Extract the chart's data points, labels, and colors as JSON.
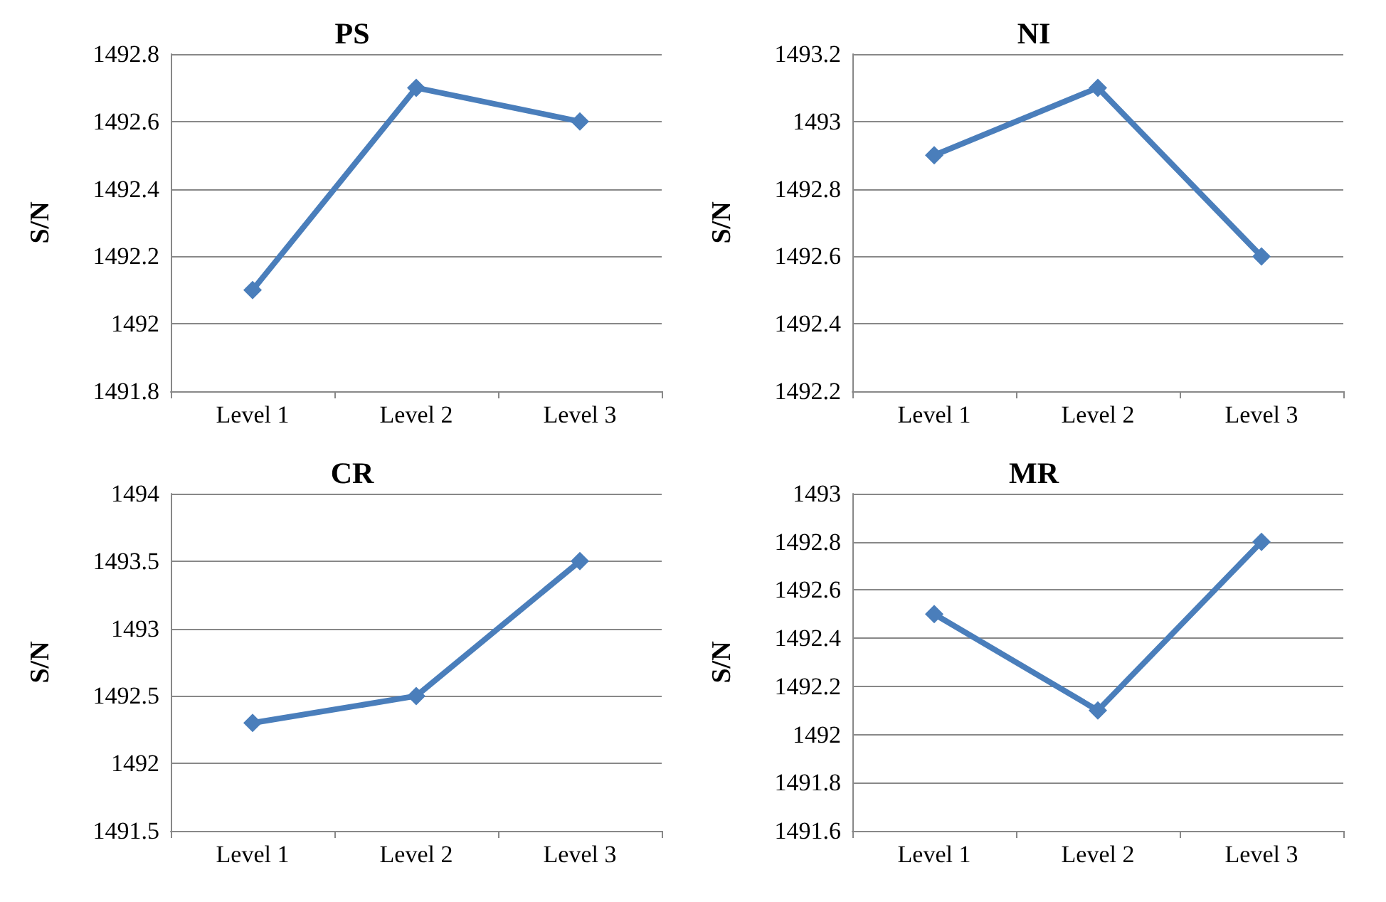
{
  "chart_data": [
    {
      "type": "line",
      "title": "PS",
      "ylabel": "S/N",
      "categories": [
        "Level 1",
        "Level 2",
        "Level 3"
      ],
      "series": [
        {
          "color": "#4a7ebb",
          "values": [
            1492.1,
            1492.7,
            1492.6
          ]
        }
      ],
      "ylim": [
        1491.8,
        1492.8
      ],
      "yticks": [
        1491.8,
        1492,
        1492.2,
        1492.4,
        1492.6,
        1492.8
      ],
      "grid": "y",
      "marker": "diamond",
      "line_style": "solid"
    },
    {
      "type": "line",
      "title": "NI",
      "ylabel": "S/N",
      "categories": [
        "Level 1",
        "Level 2",
        "Level 3"
      ],
      "series": [
        {
          "color": "#4a7ebb",
          "values": [
            1492.9,
            1493.1,
            1492.6
          ]
        }
      ],
      "ylim": [
        1492.2,
        1493.2
      ],
      "yticks": [
        1492.2,
        1492.4,
        1492.6,
        1492.8,
        1493,
        1493.2
      ],
      "grid": "y",
      "marker": "diamond",
      "line_style": "solid"
    },
    {
      "type": "line",
      "title": "CR",
      "ylabel": "S/N",
      "categories": [
        "Level 1",
        "Level 2",
        "Level 3"
      ],
      "series": [
        {
          "color": "#4a7ebb",
          "values": [
            1492.3,
            1492.5,
            1493.5
          ]
        }
      ],
      "ylim": [
        1491.5,
        1494
      ],
      "yticks": [
        1491.5,
        1492,
        1492.5,
        1493,
        1493.5,
        1494
      ],
      "grid": "y",
      "marker": "diamond",
      "line_style": "solid"
    },
    {
      "type": "line",
      "title": "MR",
      "ylabel": "S/N",
      "categories": [
        "Level 1",
        "Level 2",
        "Level 3"
      ],
      "series": [
        {
          "color": "#4a7ebb",
          "values": [
            1492.5,
            1492.1,
            1492.8
          ]
        }
      ],
      "ylim": [
        1491.6,
        1493
      ],
      "yticks": [
        1491.6,
        1491.8,
        1492,
        1492.2,
        1492.4,
        1492.6,
        1492.8,
        1493
      ],
      "grid": "y",
      "marker": "diamond",
      "line_style": "solid"
    }
  ]
}
